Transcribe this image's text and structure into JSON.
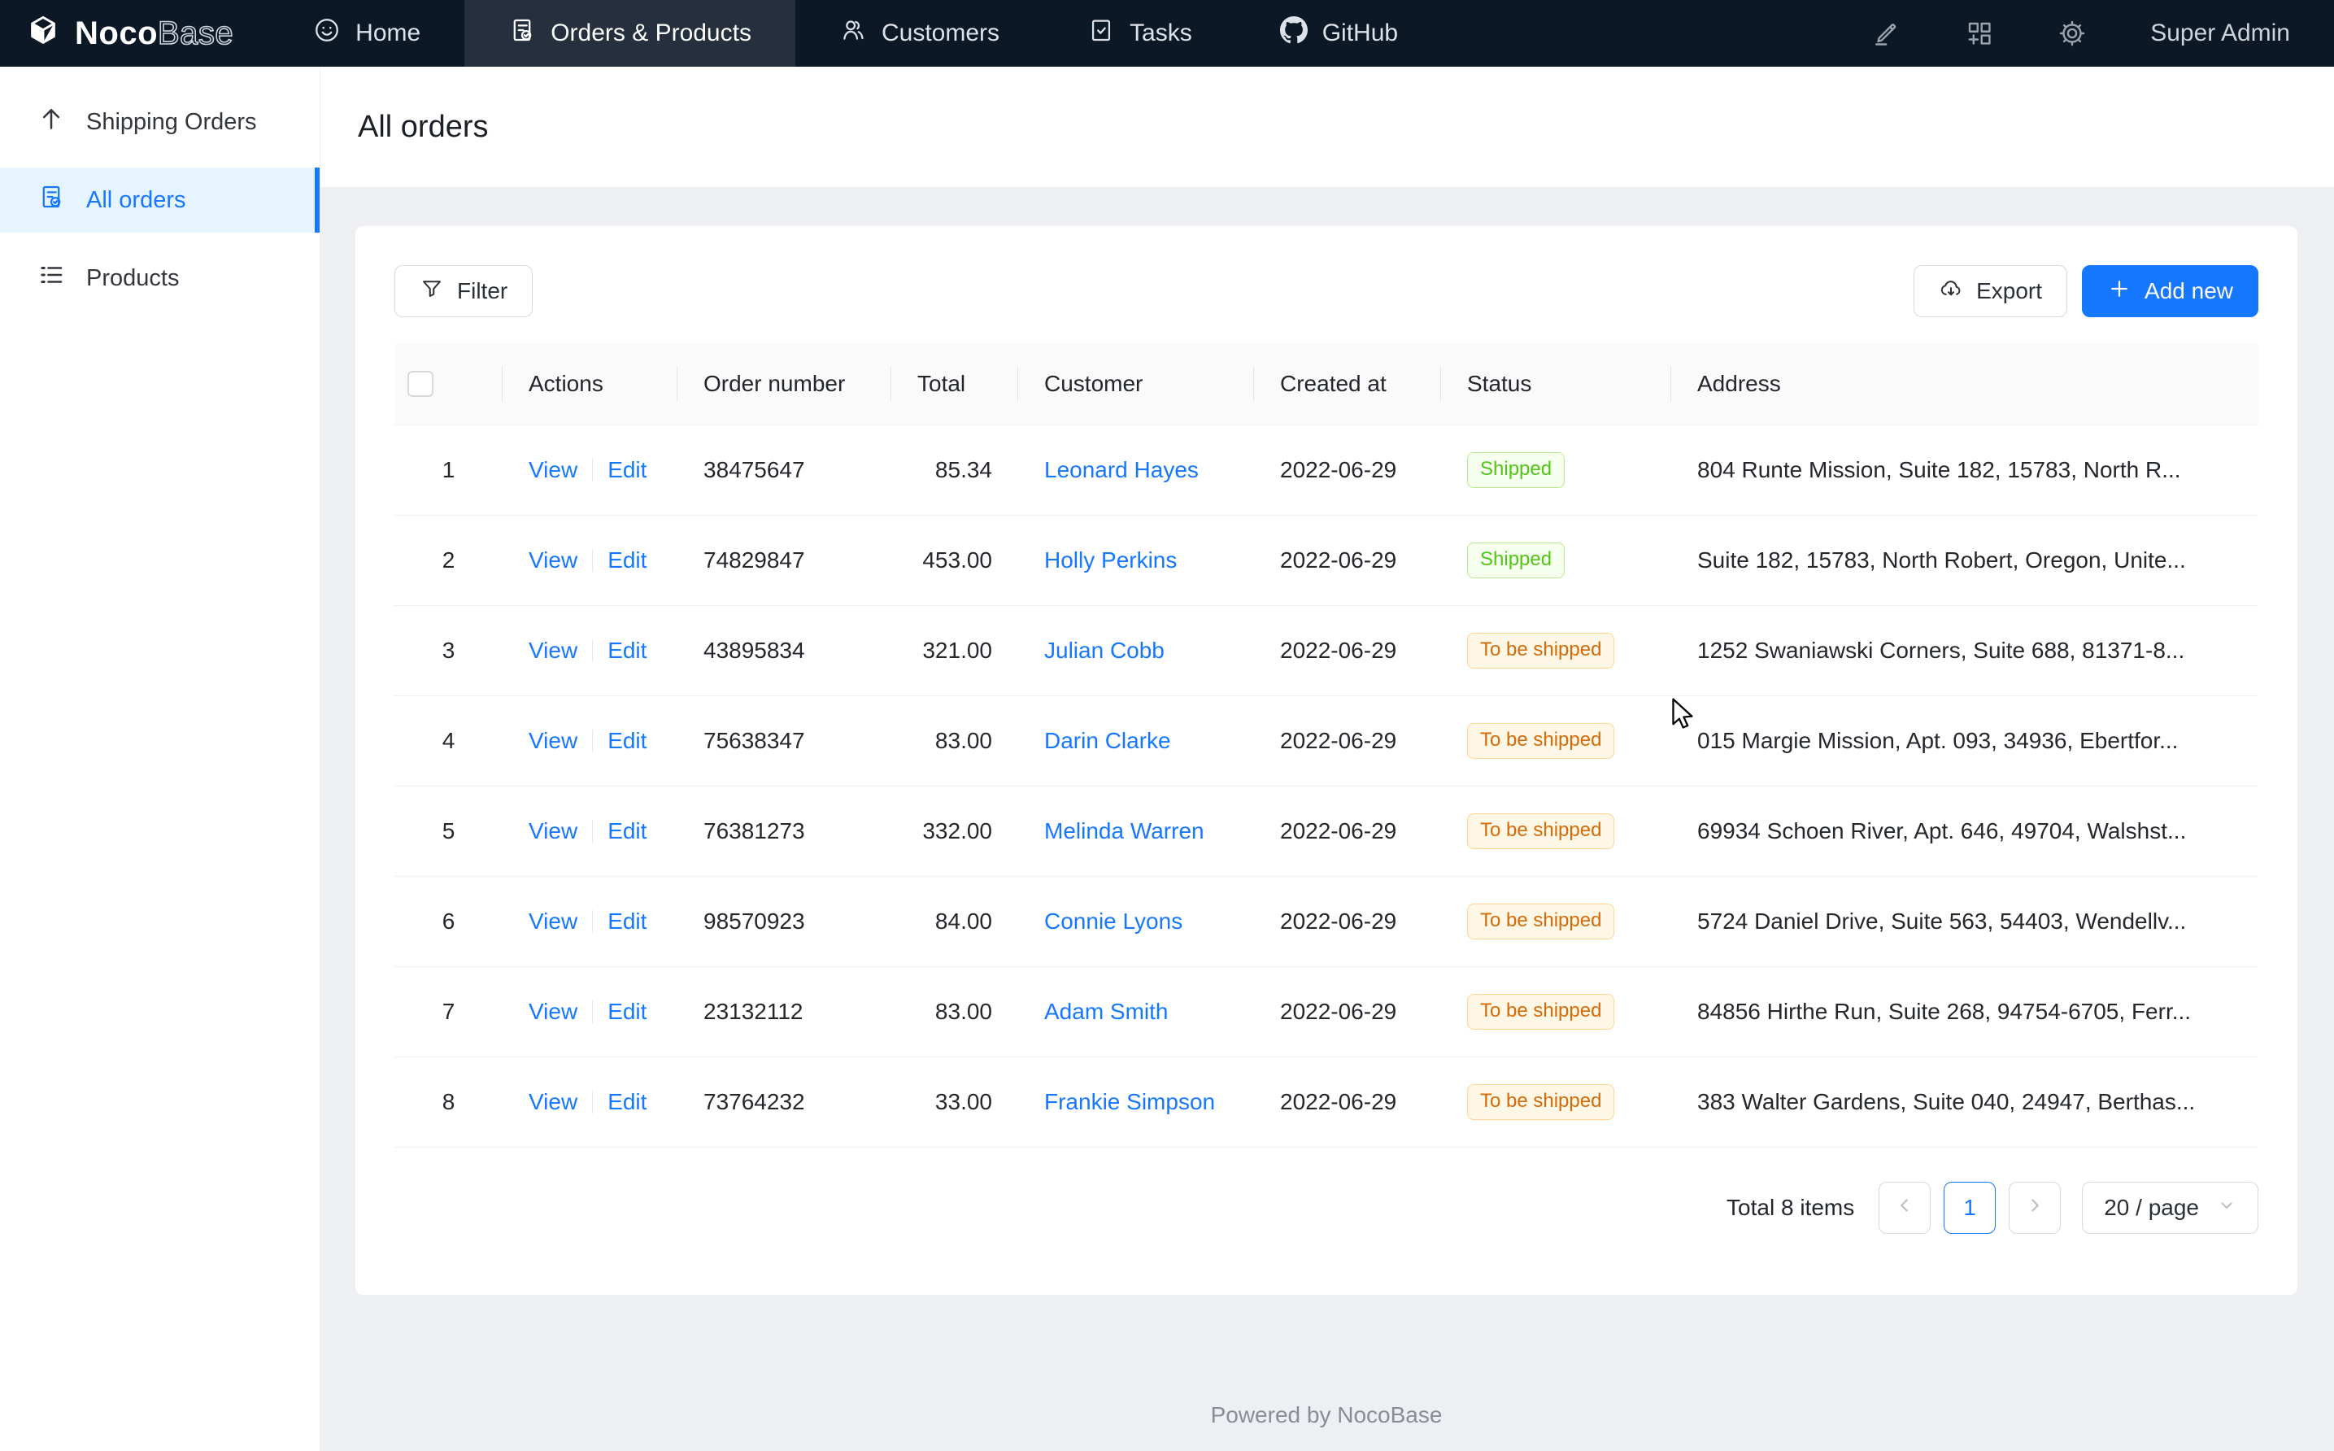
{
  "nav": {
    "brand": {
      "bold": "Noco",
      "light": "Base"
    },
    "tabs": [
      {
        "label": "Home",
        "icon": "smiley-icon",
        "active": false
      },
      {
        "label": "Orders & Products",
        "icon": "document-check-icon",
        "active": true
      },
      {
        "label": "Customers",
        "icon": "customers-icon",
        "active": false
      },
      {
        "label": "Tasks",
        "icon": "task-check-icon",
        "active": false
      },
      {
        "label": "GitHub",
        "icon": "github-icon",
        "active": false
      }
    ],
    "right_icons": [
      "highlighter-icon",
      "blocks-add-icon",
      "gear-icon"
    ],
    "user": "Super Admin"
  },
  "sidebar": {
    "items": [
      {
        "label": "Shipping Orders",
        "icon": "arrow-up-icon",
        "active": false
      },
      {
        "label": "All orders",
        "icon": "document-check-icon",
        "active": true
      },
      {
        "label": "Products",
        "icon": "list-icon",
        "active": false
      }
    ]
  },
  "page": {
    "title": "All orders"
  },
  "toolbar": {
    "filter": "Filter",
    "export": "Export",
    "add_new": "Add new"
  },
  "table": {
    "headers": {
      "actions": "Actions",
      "order_number": "Order number",
      "total": "Total",
      "customer": "Customer",
      "created_at": "Created at",
      "status": "Status",
      "address": "Address"
    },
    "row_actions": {
      "view": "View",
      "edit": "Edit"
    },
    "rows": [
      {
        "index": "1",
        "order_number": "38475647",
        "total": "85.34",
        "customer": "Leonard Hayes",
        "created_at": "2022-06-29",
        "status": "Shipped",
        "status_type": "green",
        "address": "804 Runte Mission, Suite 182, 15783, North R..."
      },
      {
        "index": "2",
        "order_number": "74829847",
        "total": "453.00",
        "customer": "Holly Perkins",
        "created_at": "2022-06-29",
        "status": "Shipped",
        "status_type": "green",
        "address": "Suite 182, 15783, North Robert, Oregon, Unite..."
      },
      {
        "index": "3",
        "order_number": "43895834",
        "total": "321.00",
        "customer": "Julian Cobb",
        "created_at": "2022-06-29",
        "status": "To be shipped",
        "status_type": "orange",
        "address": "1252 Swaniawski Corners, Suite 688, 81371-8..."
      },
      {
        "index": "4",
        "order_number": "75638347",
        "total": "83.00",
        "customer": "Darin Clarke",
        "created_at": "2022-06-29",
        "status": "To be shipped",
        "status_type": "orange",
        "address": "015 Margie Mission, Apt. 093, 34936, Ebertfor..."
      },
      {
        "index": "5",
        "order_number": "76381273",
        "total": "332.00",
        "customer": "Melinda Warren",
        "created_at": "2022-06-29",
        "status": "To be shipped",
        "status_type": "orange",
        "address": "69934 Schoen River, Apt. 646, 49704, Walshst..."
      },
      {
        "index": "6",
        "order_number": "98570923",
        "total": "84.00",
        "customer": "Connie Lyons",
        "created_at": "2022-06-29",
        "status": "To be shipped",
        "status_type": "orange",
        "address": "5724 Daniel Drive, Suite 563, 54403, Wendellv..."
      },
      {
        "index": "7",
        "order_number": "23132112",
        "total": "83.00",
        "customer": "Adam Smith",
        "created_at": "2022-06-29",
        "status": "To be shipped",
        "status_type": "orange",
        "address": "84856 Hirthe Run, Suite 268, 94754-6705, Ferr..."
      },
      {
        "index": "8",
        "order_number": "73764232",
        "total": "33.00",
        "customer": "Frankie Simpson",
        "created_at": "2022-06-29",
        "status": "To be shipped",
        "status_type": "orange",
        "address": "383 Walter Gardens, Suite 040, 24947, Berthas..."
      }
    ]
  },
  "pagination": {
    "total_text": "Total 8 items",
    "page": "1",
    "page_size": "20 / page"
  },
  "footer": {
    "text": "Powered by NocoBase"
  },
  "colors": {
    "accent": "#1677ff",
    "nav_bg": "#0d1826",
    "nav_tab_active_bg": "#252f3e",
    "sidebar_active_bg": "#e6f4ff",
    "content_bg": "#edeff3",
    "tag_green_text": "#52c41a",
    "tag_green_bg": "#f6ffed",
    "tag_green_border": "#b7eb8f",
    "tag_orange_text": "#d46b08",
    "tag_orange_bg": "#fff7e6",
    "tag_orange_border": "#ffd591"
  }
}
